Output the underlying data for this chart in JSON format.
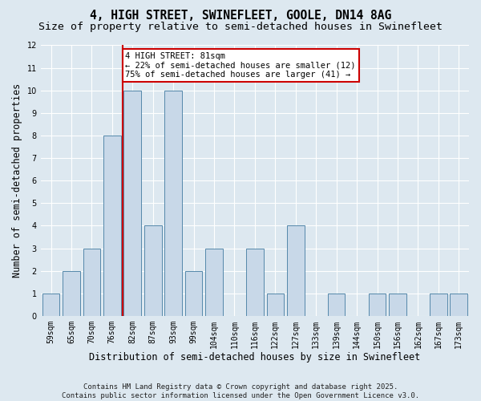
{
  "title": "4, HIGH STREET, SWINEFLEET, GOOLE, DN14 8AG",
  "subtitle": "Size of property relative to semi-detached houses in Swinefleet",
  "xlabel": "Distribution of semi-detached houses by size in Swinefleet",
  "ylabel": "Number of semi-detached properties",
  "categories": [
    "59sqm",
    "65sqm",
    "70sqm",
    "76sqm",
    "82sqm",
    "87sqm",
    "93sqm",
    "99sqm",
    "104sqm",
    "110sqm",
    "116sqm",
    "122sqm",
    "127sqm",
    "133sqm",
    "139sqm",
    "144sqm",
    "150sqm",
    "156sqm",
    "162sqm",
    "167sqm",
    "173sqm"
  ],
  "values": [
    1,
    2,
    3,
    8,
    10,
    4,
    10,
    2,
    3,
    0,
    3,
    1,
    4,
    0,
    1,
    0,
    1,
    1,
    0,
    1,
    1
  ],
  "bar_color": "#c8d8e8",
  "bar_edge_color": "#5588aa",
  "annotation_title": "4 HIGH STREET: 81sqm",
  "annotation_line1": "← 22% of semi-detached houses are smaller (12)",
  "annotation_line2": "75% of semi-detached houses are larger (41) →",
  "annotation_box_color": "#ffffff",
  "annotation_box_edge": "#cc0000",
  "vline_color": "#cc0000",
  "vline_x": 4.0,
  "ylim": [
    0,
    12
  ],
  "yticks": [
    0,
    1,
    2,
    3,
    4,
    5,
    6,
    7,
    8,
    9,
    10,
    11,
    12
  ],
  "background_color": "#dde8f0",
  "footer": "Contains HM Land Registry data © Crown copyright and database right 2025.\nContains public sector information licensed under the Open Government Licence v3.0.",
  "title_fontsize": 10.5,
  "subtitle_fontsize": 9.5,
  "label_fontsize": 8.5,
  "tick_fontsize": 7,
  "footer_fontsize": 6.5,
  "annotation_fontsize": 7.5
}
